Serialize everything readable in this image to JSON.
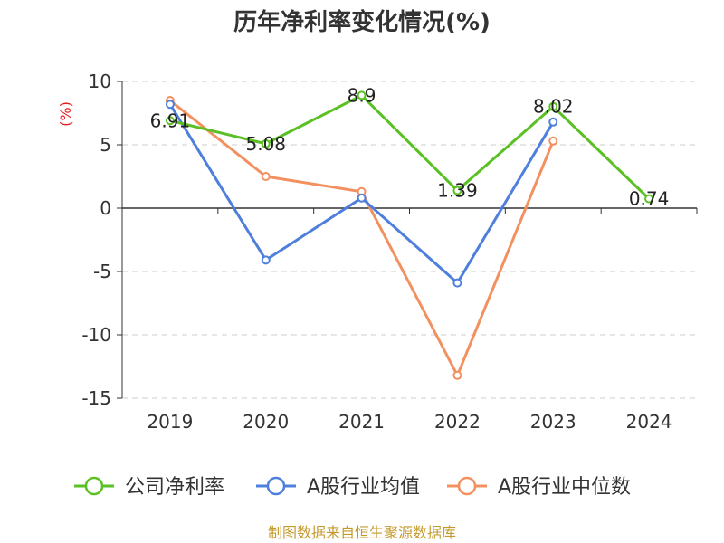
{
  "chart_data": {
    "type": "line",
    "title": "历年净利率变化情况(%)",
    "ylabel": "(%)",
    "categories": [
      "2019",
      "2020",
      "2021",
      "2022",
      "2023",
      "2024"
    ],
    "yticks": [
      "10",
      "5",
      "0",
      "-5",
      "-10",
      "-15"
    ],
    "ylim": [
      -15,
      10
    ],
    "grid": true,
    "legend_position": "bottom",
    "series": [
      {
        "name": "公司净利率",
        "color": "#5ac023",
        "values": [
          6.91,
          5.08,
          8.9,
          1.39,
          8.02,
          0.74
        ],
        "labels": [
          "6.91",
          "5.08",
          "8.9",
          "1.39",
          "8.02",
          "0.74"
        ]
      },
      {
        "name": "A股行业均值",
        "color": "#4e7fdc",
        "values": [
          8.2,
          -4.1,
          0.8,
          -5.9,
          6.8,
          null
        ]
      },
      {
        "name": "A股行业中位数",
        "color": "#f39060",
        "values": [
          8.5,
          2.5,
          1.3,
          -13.2,
          5.3,
          null
        ]
      }
    ],
    "source": "制图数据来自恒生聚源数据库"
  }
}
